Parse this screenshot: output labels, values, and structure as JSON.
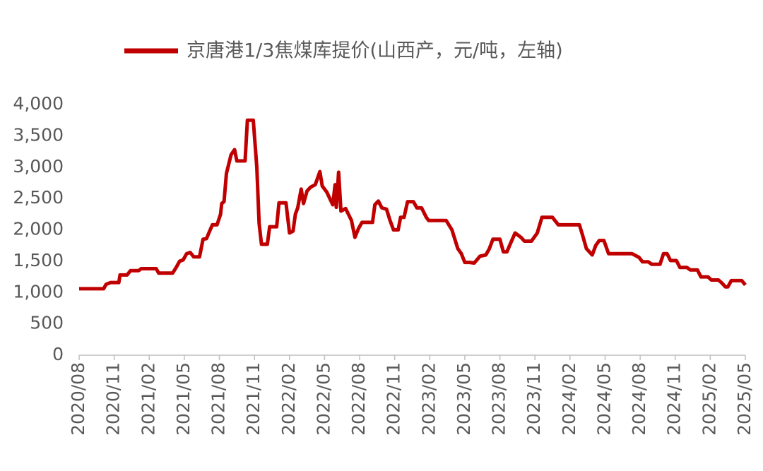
{
  "chart_data": {
    "type": "line",
    "x": [
      0,
      2.1,
      2.3,
      2.7,
      3.4,
      3.5,
      4.1,
      4.4,
      5.1,
      5.3,
      6.6,
      6.8,
      8.0,
      8.3,
      8.6,
      8.9,
      9.2,
      9.5,
      9.8,
      10.3,
      10.6,
      10.9,
      11.1,
      11.4,
      11.8,
      12.1,
      12.2,
      12.4,
      12.6,
      13.0,
      13.3,
      13.5,
      14.2,
      14.4,
      14.9,
      15.2,
      15.4,
      15.6,
      16.1,
      16.3,
      16.9,
      17.1,
      17.7,
      18.0,
      18.3,
      18.5,
      18.7,
      19.0,
      19.2,
      19.5,
      19.8,
      20.2,
      20.6,
      20.8,
      21.2,
      21.7,
      21.9,
      22.0,
      22.2,
      22.4,
      22.8,
      23.3,
      23.6,
      23.9,
      24.2,
      25.1,
      25.3,
      25.6,
      25.9,
      26.3,
      26.6,
      26.9,
      27.3,
      27.5,
      27.8,
      28.1,
      28.6,
      28.9,
      29.3,
      29.7,
      29.9,
      31.4,
      31.9,
      32.4,
      32.7,
      33.0,
      33.4,
      33.8,
      34.3,
      34.8,
      35.1,
      35.4,
      36.0,
      36.3,
      36.6,
      36.9,
      37.3,
      37.8,
      38.1,
      38.7,
      39.2,
      39.6,
      40.5,
      41.0,
      42.8,
      43.1,
      43.4,
      43.9,
      44.2,
      44.5,
      44.9,
      45.3,
      47.3,
      47.9,
      48.2,
      48.7,
      49.0,
      49.7,
      50.0,
      50.3,
      50.6,
      51.1,
      51.4,
      52.0,
      52.3,
      52.9,
      53.2,
      53.8,
      54.1,
      54.7,
      55.0,
      55.3,
      55.5,
      55.8,
      56.7,
      57.0
    ],
    "series": [
      {
        "name": "京唐港1/3焦煤库提价(山西产，元/吨，左轴)",
        "color": "#c00000",
        "values": [
          1060,
          1060,
          1130,
          1160,
          1160,
          1280,
          1280,
          1350,
          1350,
          1380,
          1380,
          1310,
          1310,
          1400,
          1500,
          1520,
          1620,
          1640,
          1570,
          1570,
          1850,
          1860,
          1950,
          2080,
          2080,
          2250,
          2420,
          2450,
          2900,
          3200,
          3280,
          3100,
          3100,
          3750,
          3750,
          3000,
          2100,
          1770,
          1770,
          2050,
          2050,
          2430,
          2430,
          1950,
          1980,
          2250,
          2350,
          2650,
          2420,
          2620,
          2680,
          2720,
          2930,
          2700,
          2600,
          2400,
          2720,
          2360,
          2920,
          2300,
          2340,
          2150,
          1880,
          2020,
          2120,
          2120,
          2400,
          2460,
          2350,
          2330,
          2150,
          2000,
          2000,
          2200,
          2200,
          2450,
          2450,
          2350,
          2350,
          2200,
          2150,
          2150,
          2000,
          1700,
          1620,
          1480,
          1480,
          1470,
          1580,
          1600,
          1700,
          1850,
          1850,
          1650,
          1650,
          1780,
          1950,
          1880,
          1820,
          1820,
          1950,
          2200,
          2200,
          2080,
          2080,
          1900,
          1700,
          1600,
          1750,
          1830,
          1830,
          1620,
          1620,
          1560,
          1490,
          1490,
          1450,
          1450,
          1620,
          1620,
          1510,
          1510,
          1400,
          1400,
          1360,
          1360,
          1250,
          1250,
          1200,
          1200,
          1150,
          1090,
          1090,
          1190,
          1190,
          1120
        ]
      }
    ],
    "xlim": [
      0,
      57
    ],
    "xticks": [
      {
        "value": 0,
        "label": "2020/08"
      },
      {
        "value": 3,
        "label": "2020/11"
      },
      {
        "value": 6,
        "label": "2021/02"
      },
      {
        "value": 9,
        "label": "2021/05"
      },
      {
        "value": 12,
        "label": "2021/08"
      },
      {
        "value": 15,
        "label": "2021/11"
      },
      {
        "value": 18,
        "label": "2022/02"
      },
      {
        "value": 21,
        "label": "2022/05"
      },
      {
        "value": 24,
        "label": "2022/08"
      },
      {
        "value": 27,
        "label": "2022/11"
      },
      {
        "value": 30,
        "label": "2023/02"
      },
      {
        "value": 33,
        "label": "2023/05"
      },
      {
        "value": 36,
        "label": "2023/08"
      },
      {
        "value": 39,
        "label": "2023/11"
      },
      {
        "value": 42,
        "label": "2024/02"
      },
      {
        "value": 45,
        "label": "2024/05"
      },
      {
        "value": 48,
        "label": "2024/08"
      },
      {
        "value": 51,
        "label": "2024/11"
      },
      {
        "value": 54,
        "label": "2025/02"
      },
      {
        "value": 57,
        "label": "2025/05"
      }
    ],
    "ylim": [
      0,
      4000
    ],
    "yticks": [
      0,
      500,
      {
        "value": 1000,
        "label": "1,000"
      },
      {
        "value": 1500,
        "label": "1,500"
      },
      {
        "value": 2000,
        "label": "2,000"
      },
      {
        "value": 2500,
        "label": "2,500"
      },
      {
        "value": 3000,
        "label": "3,000"
      },
      {
        "value": 3500,
        "label": "3,500"
      },
      {
        "value": 4000,
        "label": "4,000"
      }
    ],
    "legend": "top"
  }
}
